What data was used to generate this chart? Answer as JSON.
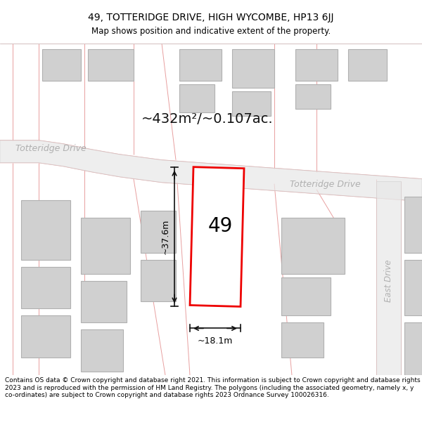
{
  "title": "49, TOTTERIDGE DRIVE, HIGH WYCOMBE, HP13 6JJ",
  "subtitle": "Map shows position and indicative extent of the property.",
  "area_label": "~432m²/~0.107ac.",
  "number_label": "49",
  "dim_width": "~18.1m",
  "dim_height": "~37.6m",
  "road_label_left": "Totteridge Drive",
  "road_label_right": "Totteridge Drive",
  "road_label_east": "East Drive",
  "footer_text": "Contains OS data © Crown copyright and database right 2021. This information is subject to Crown copyright and database rights 2023 and is reproduced with the permission of HM Land Registry. The polygons (including the associated geometry, namely x, y co-ordinates) are subject to Crown copyright and database rights 2023 Ordnance Survey 100026316.",
  "bg_color": "#ffffff",
  "map_bg": "#f5f5f5",
  "building_fill": "#d0d0d0",
  "building_edge": "#b0b0b0",
  "red_outline": "#ee0000",
  "pink_line": "#e8a0a0",
  "dim_line_color": "#111111",
  "road_text_color": "#b0b0b0",
  "area_text_color": "#111111"
}
